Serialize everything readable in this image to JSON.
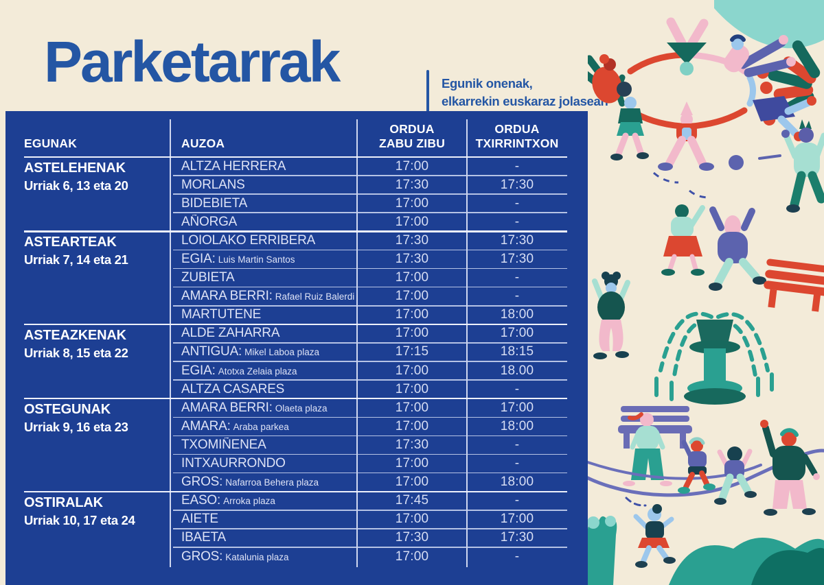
{
  "header": {
    "title": "Parketarrak",
    "subtitle": [
      "Egunik onenak,",
      "elkarrekin euskaraz jolasean"
    ]
  },
  "table": {
    "columns": {
      "egunak": "EGUNAK",
      "auzoa": "AUZOA",
      "zabu_line1": "ORDUA",
      "zabu_line2": "ZABU ZIBU",
      "txirrin_line1": "ORDUA",
      "txirrin_line2": "TXIRRINTXON"
    },
    "groups": [
      {
        "day": "ASTELEHENAK",
        "dates": "Urriak 6, 13 eta 20",
        "rows": [
          {
            "auzoa": "ALTZA HERRERA",
            "zabu": "17:00",
            "txirrin": "-"
          },
          {
            "auzoa": "MORLANS",
            "zabu": "17:30",
            "txirrin": "17:30"
          },
          {
            "auzoa": "BIDEBIETA",
            "zabu": "17:00",
            "txirrin": "-"
          },
          {
            "auzoa": "AÑORGA",
            "zabu": "17:00",
            "txirrin": "-"
          }
        ]
      },
      {
        "day": "ASTEARTEAK",
        "dates": "Urriak 7, 14 eta 21",
        "rows": [
          {
            "auzoa": "LOIOLAKO ERRIBERA",
            "zabu": "17:30",
            "txirrin": "17:30"
          },
          {
            "auzoa": "EGIA:",
            "detail": "Luis Martin Santos",
            "zabu": "17:30",
            "txirrin": "17:30"
          },
          {
            "auzoa": "ZUBIETA",
            "zabu": "17:00",
            "txirrin": "-"
          },
          {
            "auzoa": "AMARA BERRI:",
            "detail": "Rafael Ruiz Balerdi",
            "zabu": "17:00",
            "txirrin": "-"
          },
          {
            "auzoa": "MARTUTENE",
            "zabu": "17:00",
            "txirrin": "18:00"
          }
        ]
      },
      {
        "day": "ASTEAZKENAK",
        "dates": "Urriak 8, 15 eta 22",
        "rows": [
          {
            "auzoa": "ALDE ZAHARRA",
            "zabu": "17:00",
            "txirrin": "17:00"
          },
          {
            "auzoa": "ANTIGUA:",
            "detail": "Mikel Laboa plaza",
            "zabu": "17:15",
            "txirrin": "18:15"
          },
          {
            "auzoa": "EGIA:",
            "detail": "Atotxa Zelaia plaza",
            "zabu": "17:00",
            "txirrin": "18.00"
          },
          {
            "auzoa": "ALTZA CASARES",
            "zabu": "17:00",
            "txirrin": "-"
          }
        ]
      },
      {
        "day": "OSTEGUNAK",
        "dates": "Urriak 9, 16 eta 23",
        "rows": [
          {
            "auzoa": "AMARA BERRI:",
            "detail": "Olaeta plaza",
            "zabu": "17:00",
            "txirrin": "17:00"
          },
          {
            "auzoa": "AMARA:",
            "detail": "Araba parkea",
            "zabu": "17:00",
            "txirrin": "18:00"
          },
          {
            "auzoa": "TXOMIÑENEA",
            "zabu": "17:30",
            "txirrin": "-"
          },
          {
            "auzoa": "INTXAURRONDO",
            "zabu": "17:00",
            "txirrin": "-"
          },
          {
            "auzoa": "GROS:",
            "detail": "Nafarroa Behera plaza",
            "zabu": "17:00",
            "txirrin": "18:00"
          }
        ]
      },
      {
        "day": "OSTIRALAK",
        "dates": "Urriak 10, 17 eta 24",
        "rows": [
          {
            "auzoa": "EASO:",
            "detail": "Arroka plaza",
            "zabu": "17:45",
            "txirrin": "-"
          },
          {
            "auzoa": "AIETE",
            "zabu": "17:00",
            "txirrin": "17:00"
          },
          {
            "auzoa": "IBAETA",
            "zabu": "17:30",
            "txirrin": "17:30"
          },
          {
            "auzoa": "GROS:",
            "detail": "Katalunia plaza",
            "zabu": "17:00",
            "txirrin": "-"
          }
        ]
      }
    ]
  },
  "illustration": {
    "scene": "children-and-adults-playing-in-a-park",
    "elements": [
      "dancers-circle",
      "jumping-figures",
      "ball",
      "fountain",
      "red-bench",
      "purple-bench",
      "dancing-woman",
      "jump-rope",
      "bushes",
      "cactus",
      "plant",
      "teal-swoosh"
    ]
  },
  "colors": {
    "panel_blue": "#1d3f93",
    "title_blue": "#2456a4",
    "cream": "#f3ebd9",
    "red": "#dc4730",
    "pink": "#f2b9cb",
    "teal": "#2aa091",
    "dark_teal": "#15695d",
    "periwinkle": "#5c63ae",
    "light_blue": "#9cc7ec"
  }
}
